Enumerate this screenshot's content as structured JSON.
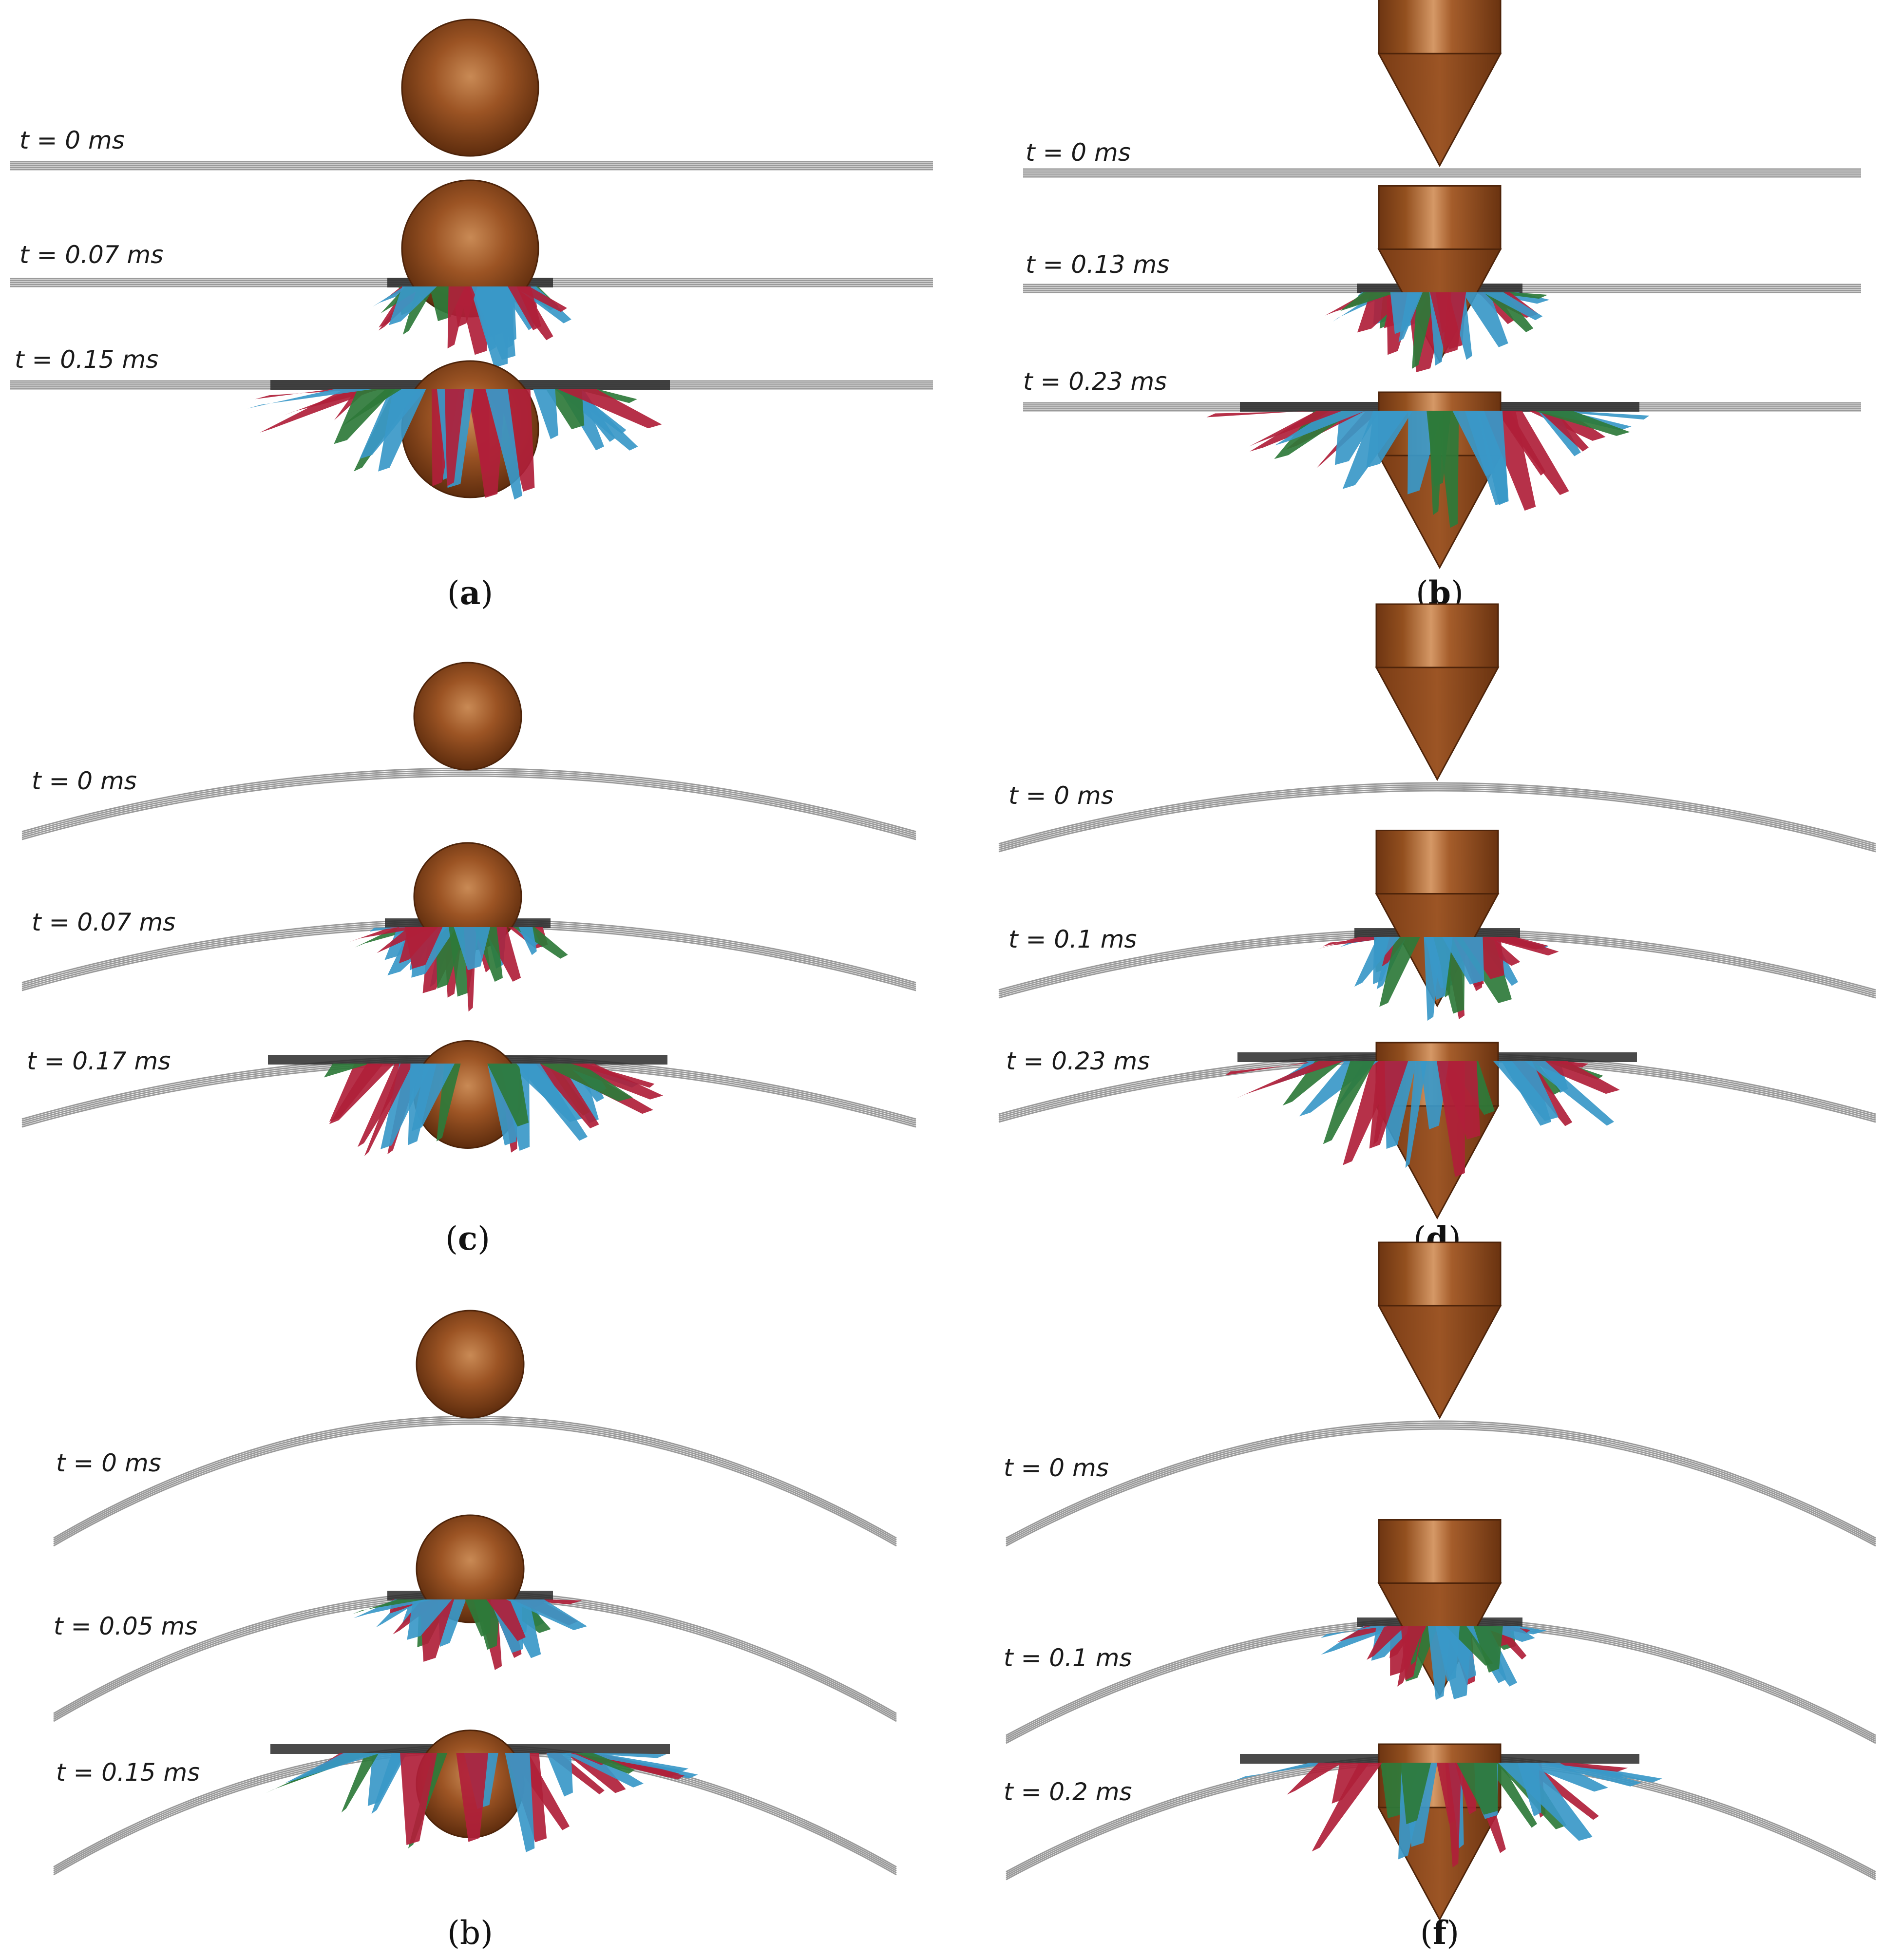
{
  "colors": {
    "projectile": "#8a4a1e",
    "plate": "#9a9a9a",
    "fragments_blue": "#3a98c8",
    "fragments_red": "#b0203a",
    "fragments_green": "#2e7a3a"
  },
  "panels": [
    {
      "caption_letter": "a",
      "caption_bold": true,
      "projectile": "sphere",
      "plate": "flat",
      "frames": [
        {
          "label": "t = 0 ms",
          "state": "pre"
        },
        {
          "label": "t = 0.07 ms",
          "state": "impact"
        },
        {
          "label": "t = 0.15 ms",
          "state": "perforated"
        }
      ]
    },
    {
      "caption_letter": "b",
      "caption_bold": true,
      "projectile": "conical",
      "plate": "flat",
      "frames": [
        {
          "label": "t = 0 ms",
          "state": "pre"
        },
        {
          "label": "t = 0.13 ms",
          "state": "impact"
        },
        {
          "label": "t = 0.23 ms",
          "state": "perforated"
        }
      ]
    },
    {
      "caption_letter": "c",
      "caption_bold": true,
      "projectile": "sphere",
      "plate": "curved-shallow",
      "frames": [
        {
          "label": "t = 0 ms",
          "state": "pre"
        },
        {
          "label": "t = 0.07 ms",
          "state": "impact"
        },
        {
          "label": "t = 0.17 ms",
          "state": "perforated"
        }
      ]
    },
    {
      "caption_letter": "d",
      "caption_bold": true,
      "projectile": "conical",
      "plate": "curved-shallow",
      "frames": [
        {
          "label": "t = 0 ms",
          "state": "pre"
        },
        {
          "label": "t = 0.1 ms",
          "state": "impact"
        },
        {
          "label": "t = 0.23 ms",
          "state": "perforated"
        }
      ]
    },
    {
      "caption_letter": "b",
      "caption_bold": false,
      "projectile": "sphere",
      "plate": "curved-deep",
      "frames": [
        {
          "label": "t = 0 ms",
          "state": "pre"
        },
        {
          "label": "t = 0.05 ms",
          "state": "impact"
        },
        {
          "label": "t = 0.15 ms",
          "state": "perforated"
        }
      ]
    },
    {
      "caption_letter": "f",
      "caption_bold": true,
      "projectile": "conical",
      "plate": "curved-deep",
      "frames": [
        {
          "label": "t = 0 ms",
          "state": "pre"
        },
        {
          "label": "t = 0.1 ms",
          "state": "impact"
        },
        {
          "label": "t = 0.2 ms",
          "state": "perforated"
        }
      ]
    }
  ]
}
